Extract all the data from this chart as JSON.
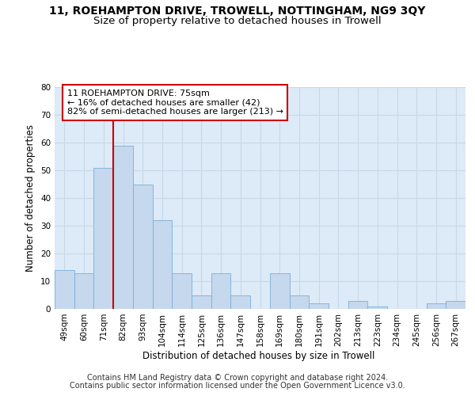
{
  "title_line1": "11, ROEHAMPTON DRIVE, TROWELL, NOTTINGHAM, NG9 3QY",
  "title_line2": "Size of property relative to detached houses in Trowell",
  "xlabel": "Distribution of detached houses by size in Trowell",
  "ylabel": "Number of detached properties",
  "categories": [
    "49sqm",
    "60sqm",
    "71sqm",
    "82sqm",
    "93sqm",
    "104sqm",
    "114sqm",
    "125sqm",
    "136sqm",
    "147sqm",
    "158sqm",
    "169sqm",
    "180sqm",
    "191sqm",
    "202sqm",
    "213sqm",
    "223sqm",
    "234sqm",
    "245sqm",
    "256sqm",
    "267sqm"
  ],
  "values": [
    14,
    13,
    51,
    59,
    45,
    32,
    13,
    5,
    13,
    5,
    0,
    13,
    5,
    2,
    0,
    3,
    1,
    0,
    0,
    2,
    3
  ],
  "bar_color": "#c5d8ee",
  "bar_edge_color": "#7bafd4",
  "grid_color": "#c8d8e8",
  "background_color": "#ddeaf7",
  "vline_color": "#cc0000",
  "vline_x_index": 2.5,
  "annotation_text": "11 ROEHAMPTON DRIVE: 75sqm\n← 16% of detached houses are smaller (42)\n82% of semi-detached houses are larger (213) →",
  "annotation_box_color": "#ffffff",
  "annotation_box_edge_color": "#cc0000",
  "ylim": [
    0,
    80
  ],
  "yticks": [
    0,
    10,
    20,
    30,
    40,
    50,
    60,
    70,
    80
  ],
  "footer_line1": "Contains HM Land Registry data © Crown copyright and database right 2024.",
  "footer_line2": "Contains public sector information licensed under the Open Government Licence v3.0.",
  "title_fontsize": 10,
  "subtitle_fontsize": 9.5,
  "axis_label_fontsize": 8.5,
  "tick_fontsize": 7.5,
  "annotation_fontsize": 8,
  "footer_fontsize": 7
}
